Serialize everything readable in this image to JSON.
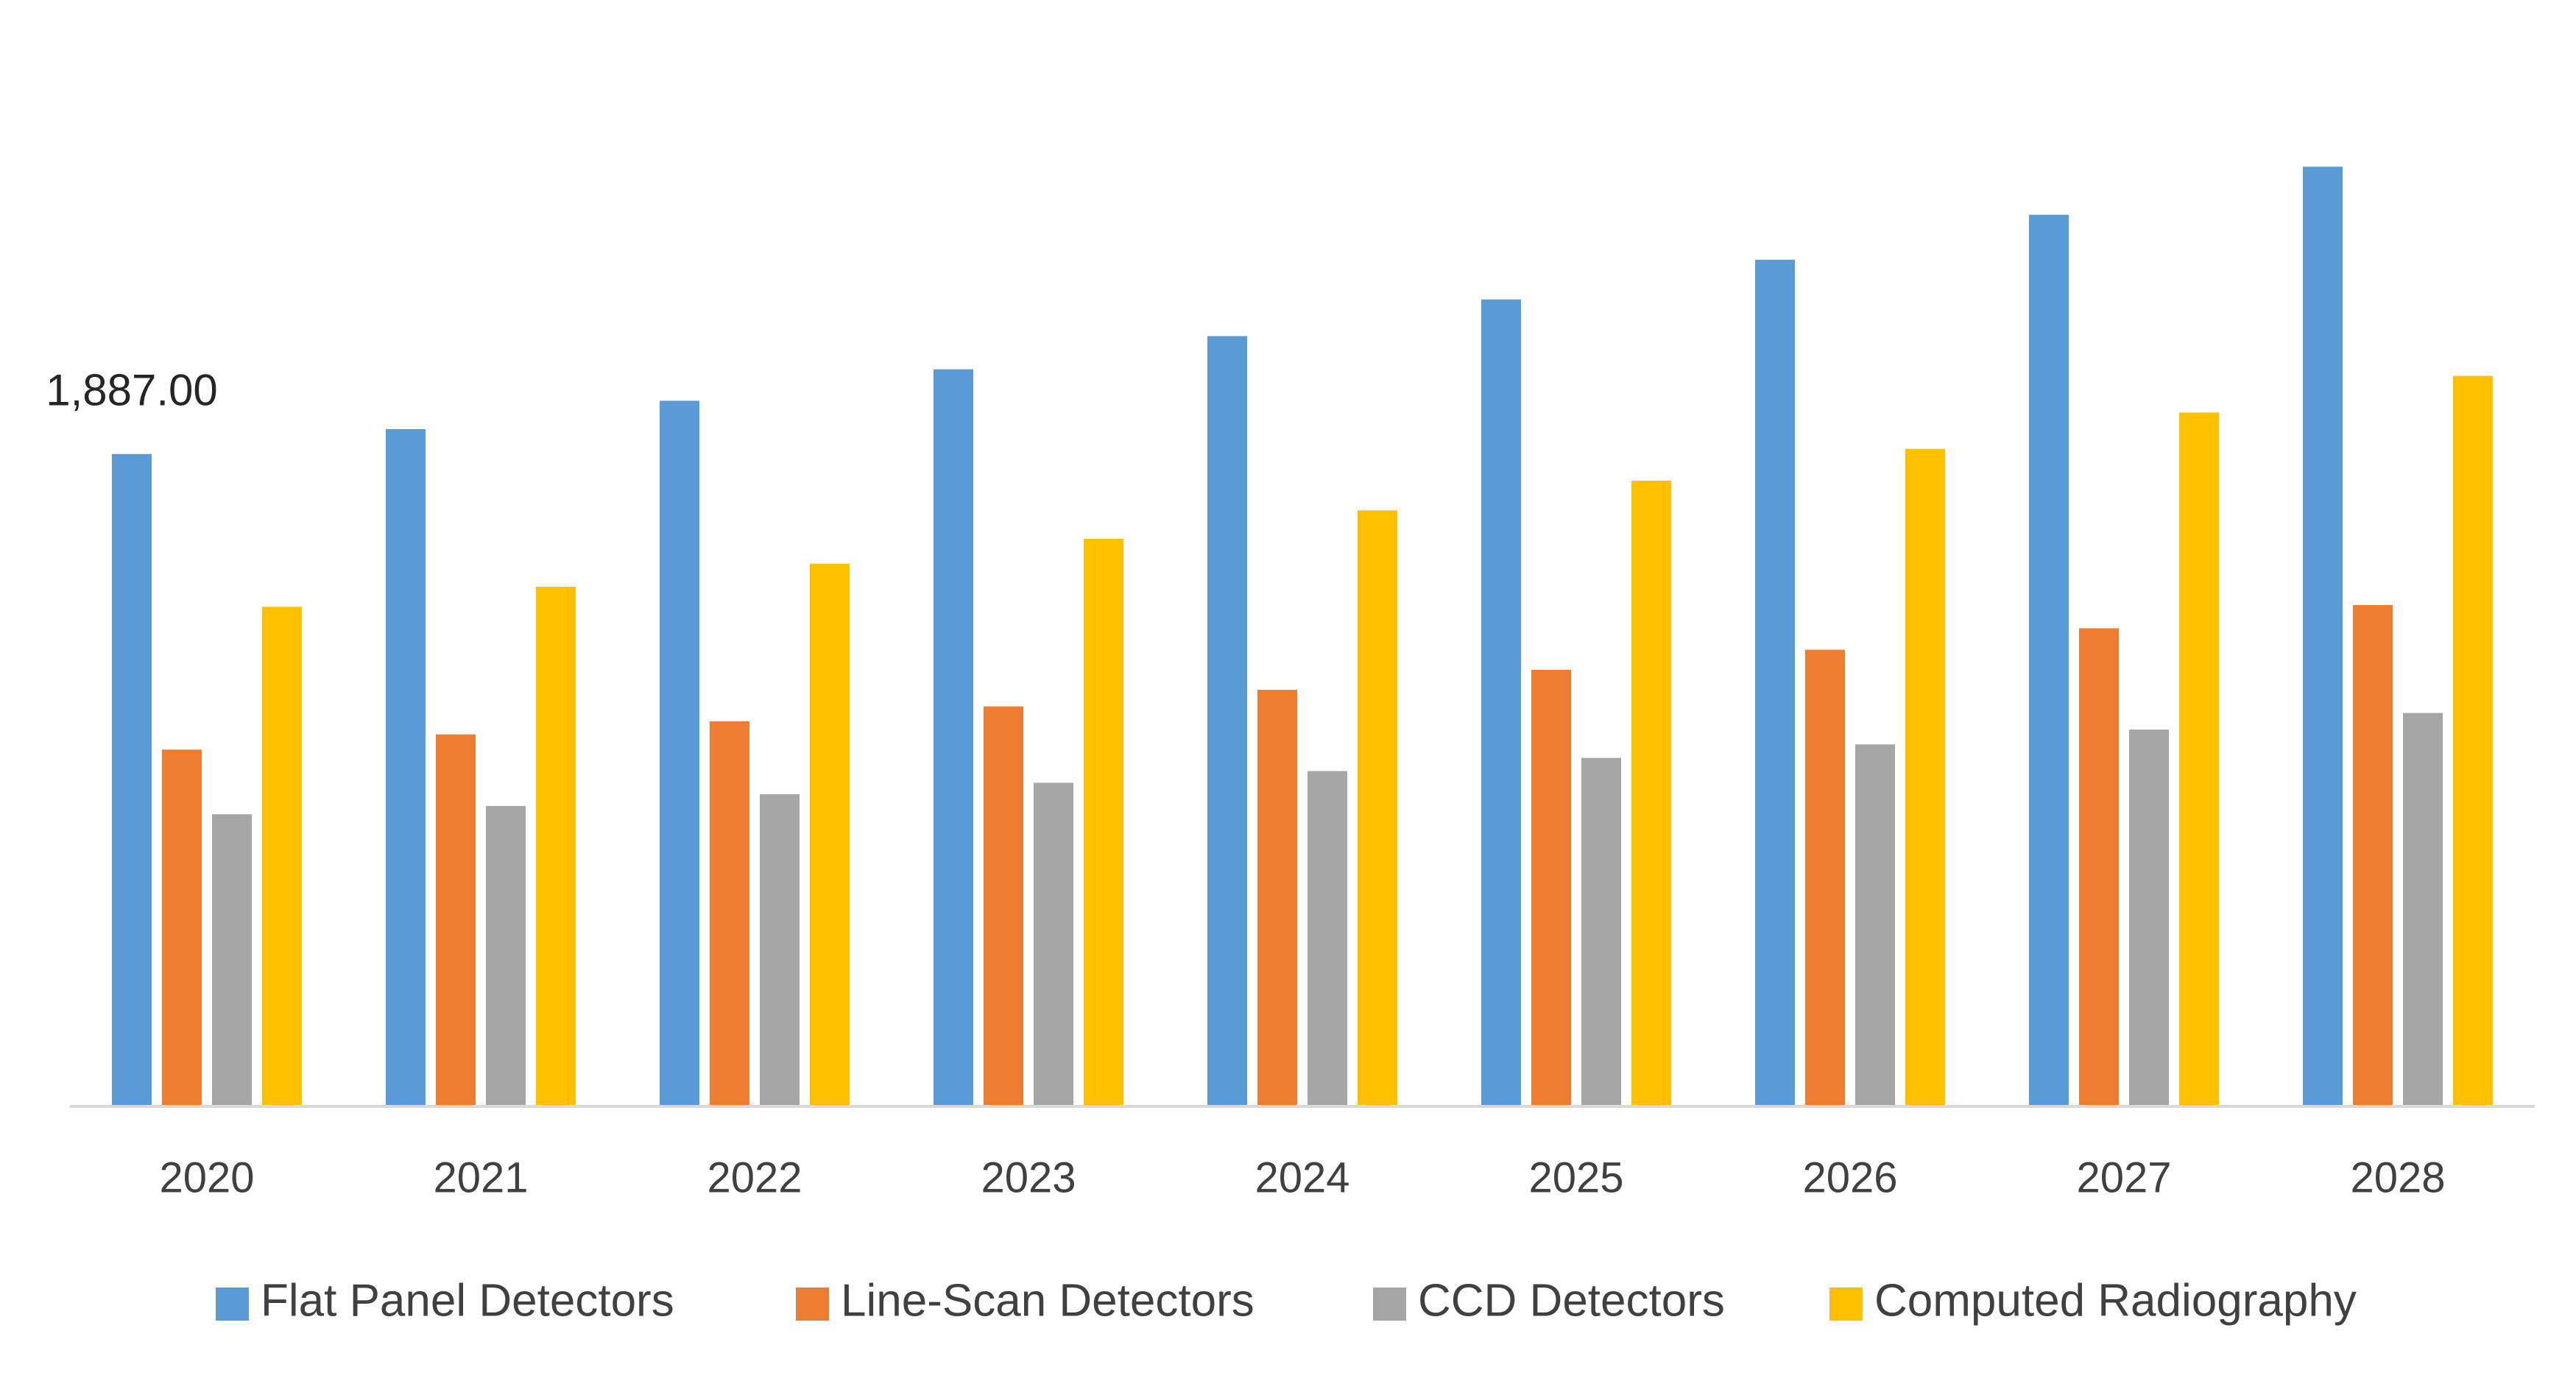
{
  "chart_data": {
    "type": "bar",
    "categories": [
      "2020",
      "2021",
      "2022",
      "2023",
      "2024",
      "2025",
      "2026",
      "2027",
      "2028"
    ],
    "series": [
      {
        "name": "Flat Panel Detectors",
        "color": "#5B9BD5",
        "values": [
          1887,
          1959,
          2041,
          2132,
          2228,
          2334,
          2449,
          2579,
          2718
        ],
        "value_labels": [
          "1,887.00",
          null,
          null,
          null,
          null,
          null,
          null,
          null,
          null
        ]
      },
      {
        "name": "Line-Scan Detectors",
        "color": "#ED7D31",
        "values": [
          1032,
          1076,
          1114,
          1157,
          1205,
          1263,
          1321,
          1383,
          1450
        ]
      },
      {
        "name": "CCD Detectors",
        "color": "#A5A5A5",
        "values": [
          845,
          869,
          903,
          936,
          970,
          1008,
          1047,
          1090,
          1138
        ]
      },
      {
        "name": "Computed Radiography",
        "color": "#FFC000",
        "values": [
          1445,
          1503,
          1570,
          1642,
          1724,
          1810,
          1902,
          2007,
          2113
        ]
      }
    ],
    "ylim": [
      0,
      3000
    ],
    "legend": "bottom"
  }
}
